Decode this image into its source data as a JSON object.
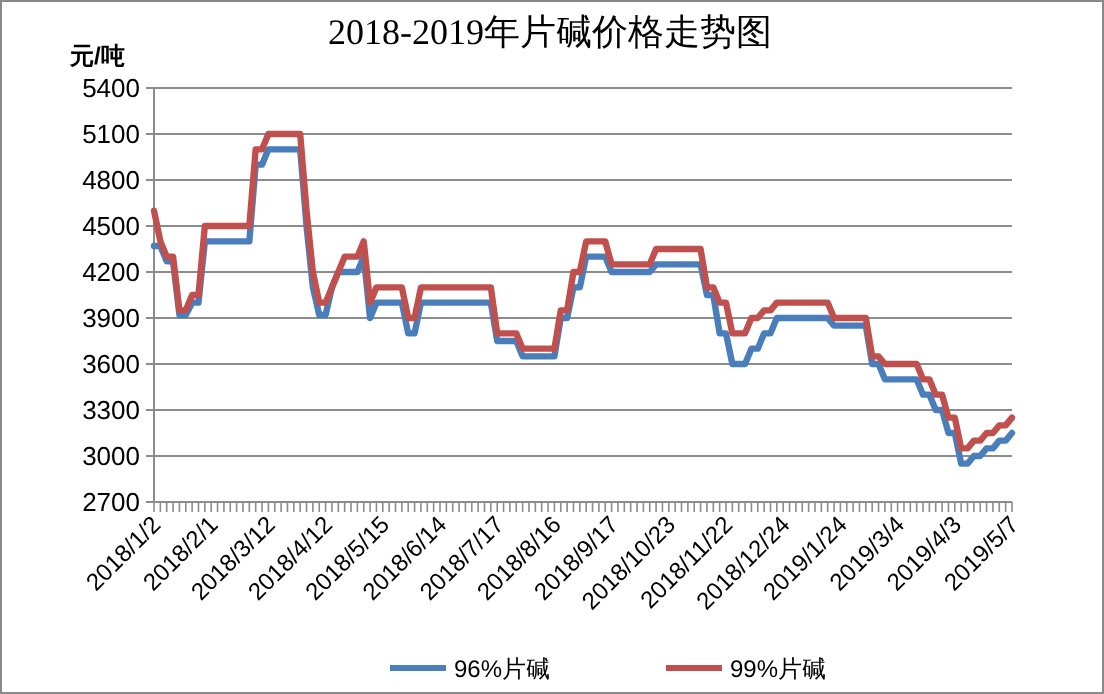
{
  "chart_data": {
    "type": "line",
    "title": "2018-2019年片碱价格走势图",
    "ylabel": "元/吨",
    "categories": [
      "2018/1/2",
      null,
      null,
      null,
      null,
      null,
      null,
      null,
      null,
      "2018/2/1",
      null,
      null,
      null,
      null,
      null,
      null,
      null,
      null,
      "2018/3/12",
      null,
      null,
      null,
      null,
      null,
      null,
      null,
      null,
      "2018/4/12",
      null,
      null,
      null,
      null,
      null,
      null,
      null,
      null,
      "2018/5/15",
      null,
      null,
      null,
      null,
      null,
      null,
      null,
      null,
      "2018/6/14",
      null,
      null,
      null,
      null,
      null,
      null,
      null,
      null,
      "2018/7/17",
      null,
      null,
      null,
      null,
      null,
      null,
      null,
      null,
      "2018/8/16",
      null,
      null,
      null,
      null,
      null,
      null,
      null,
      null,
      "2018/9/17",
      null,
      null,
      null,
      null,
      null,
      null,
      null,
      null,
      "2018/10/23",
      null,
      null,
      null,
      null,
      null,
      null,
      null,
      null,
      "2018/11/22",
      null,
      null,
      null,
      null,
      null,
      null,
      null,
      null,
      "2018/12/24",
      null,
      null,
      null,
      null,
      null,
      null,
      null,
      null,
      "2019/1/24",
      null,
      null,
      null,
      null,
      null,
      null,
      null,
      null,
      "2019/3/4",
      null,
      null,
      null,
      null,
      null,
      null,
      null,
      null,
      "2019/4/3",
      null,
      null,
      null,
      null,
      null,
      null,
      null,
      null,
      "2019/5/7"
    ],
    "series": [
      {
        "name": "96%片碱",
        "color": "#4a7ebb",
        "values": [
          4370,
          4370,
          4270,
          4270,
          3920,
          3920,
          4000,
          4000,
          4400,
          4400,
          4400,
          4400,
          4400,
          4400,
          4400,
          4400,
          4900,
          4900,
          5000,
          5000,
          5000,
          5000,
          5000,
          5000,
          4500,
          4100,
          3920,
          3920,
          4100,
          4200,
          4200,
          4200,
          4200,
          4300,
          3900,
          4000,
          4000,
          4000,
          4000,
          4000,
          3800,
          3800,
          4000,
          4000,
          4000,
          4000,
          4000,
          4000,
          4000,
          4000,
          4000,
          4000,
          4000,
          4000,
          3750,
          3750,
          3750,
          3750,
          3650,
          3650,
          3650,
          3650,
          3650,
          3650,
          3900,
          3900,
          4100,
          4100,
          4300,
          4300,
          4300,
          4300,
          4200,
          4200,
          4200,
          4200,
          4200,
          4200,
          4200,
          4250,
          4250,
          4250,
          4250,
          4250,
          4250,
          4250,
          4250,
          4050,
          4050,
          3800,
          3800,
          3600,
          3600,
          3600,
          3700,
          3700,
          3800,
          3800,
          3900,
          3900,
          3900,
          3900,
          3900,
          3900,
          3900,
          3900,
          3900,
          3850,
          3850,
          3850,
          3850,
          3850,
          3850,
          3600,
          3600,
          3500,
          3500,
          3500,
          3500,
          3500,
          3500,
          3400,
          3400,
          3300,
          3300,
          3150,
          3150,
          2950,
          2950,
          3000,
          3000,
          3050,
          3050,
          3100,
          3100,
          3150
        ]
      },
      {
        "name": "99%片碱",
        "color": "#c0504d",
        "values": [
          4600,
          4400,
          4300,
          4300,
          3950,
          3950,
          4050,
          4050,
          4500,
          4500,
          4500,
          4500,
          4500,
          4500,
          4500,
          4500,
          5000,
          5000,
          5100,
          5100,
          5100,
          5100,
          5100,
          5100,
          4600,
          4200,
          4000,
          4000,
          4100,
          4200,
          4300,
          4300,
          4300,
          4400,
          4000,
          4100,
          4100,
          4100,
          4100,
          4100,
          3900,
          3900,
          4100,
          4100,
          4100,
          4100,
          4100,
          4100,
          4100,
          4100,
          4100,
          4100,
          4100,
          4100,
          3800,
          3800,
          3800,
          3800,
          3700,
          3700,
          3700,
          3700,
          3700,
          3700,
          3950,
          3950,
          4200,
          4200,
          4400,
          4400,
          4400,
          4400,
          4250,
          4250,
          4250,
          4250,
          4250,
          4250,
          4250,
          4350,
          4350,
          4350,
          4350,
          4350,
          4350,
          4350,
          4350,
          4100,
          4100,
          4000,
          4000,
          3800,
          3800,
          3800,
          3900,
          3900,
          3950,
          3950,
          4000,
          4000,
          4000,
          4000,
          4000,
          4000,
          4000,
          4000,
          4000,
          3900,
          3900,
          3900,
          3900,
          3900,
          3900,
          3650,
          3650,
          3600,
          3600,
          3600,
          3600,
          3600,
          3600,
          3500,
          3500,
          3400,
          3400,
          3250,
          3250,
          3050,
          3050,
          3100,
          3100,
          3150,
          3150,
          3200,
          3200,
          3250
        ]
      }
    ],
    "ylim": [
      2700,
      5400
    ],
    "yticks": [
      2700,
      3000,
      3300,
      3600,
      3900,
      4200,
      4500,
      4800,
      5100,
      5400
    ],
    "grid": "y",
    "legend": "bottom"
  }
}
